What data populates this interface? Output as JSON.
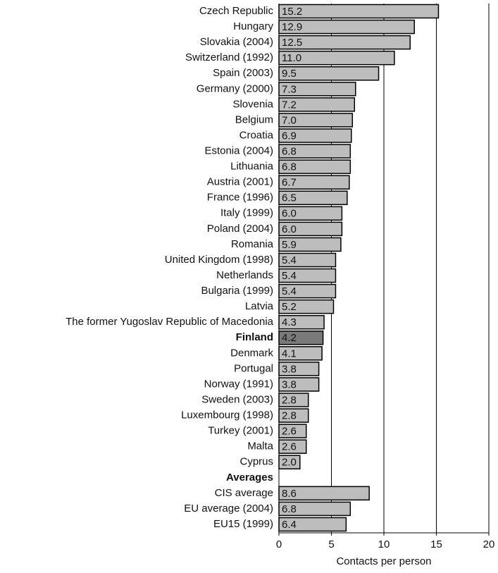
{
  "chart_data": {
    "type": "barh",
    "categories": [
      "Czech Republic",
      "Hungary",
      "Slovakia (2004)",
      "Switzerland (1992)",
      "Spain (2003)",
      "Germany (2000)",
      "Slovenia",
      "Belgium",
      "Croatia",
      "Estonia (2004)",
      "Lithuania",
      "Austria (2001)",
      "France (1996)",
      "Italy (1999)",
      "Poland (2004)",
      "Romania",
      "United Kingdom (1998)",
      "Netherlands",
      "Bulgaria (1999)",
      "Latvia",
      "The former Yugoslav Republic of Macedonia",
      "Finland",
      "Denmark",
      "Portugal",
      "Norway (1991)",
      "Sweden (2003)",
      "Luxembourg (1998)",
      "Turkey (2001)",
      "Malta",
      "Cyprus",
      "Averages",
      "CIS average",
      "EU average (2004)",
      "EU15 (1999)"
    ],
    "values": [
      15.2,
      12.9,
      12.5,
      11,
      9.5,
      7.3,
      7.2,
      7,
      6.9,
      6.8,
      6.8,
      6.7,
      6.5,
      6,
      6,
      5.9,
      5.4,
      5.4,
      5.4,
      5.2,
      4.3,
      4.2,
      4.1,
      3.8,
      3.8,
      2.8,
      2.8,
      2.6,
      2.6,
      2,
      null,
      8.6,
      6.8,
      6.4
    ],
    "value_labels": [
      "15.2",
      "12.9",
      "12.5",
      "11.0",
      "9.5",
      "7.3",
      "7.2",
      "7.0",
      "6.9",
      "6.8",
      "6.8",
      "6.7",
      "6.5",
      "6.0",
      "6.0",
      "5.9",
      "5.4",
      "5.4",
      "5.4",
      "5.2",
      "4.3",
      "4.2",
      "4.1",
      "3.8",
      "3.8",
      "2.8",
      "2.8",
      "2.6",
      "2.6",
      "2.0",
      null,
      "8.6",
      "6.8",
      "6.4"
    ],
    "color": "#bdbdbd",
    "highlight_color": "#7a7a7a",
    "highlight": [
      false,
      false,
      false,
      false,
      false,
      false,
      false,
      false,
      false,
      false,
      false,
      false,
      false,
      false,
      false,
      false,
      false,
      false,
      false,
      false,
      false,
      true,
      false,
      false,
      false,
      false,
      false,
      false,
      false,
      false,
      false,
      false,
      false,
      false
    ],
    "bold": [
      false,
      false,
      false,
      false,
      false,
      false,
      false,
      false,
      false,
      false,
      false,
      false,
      false,
      false,
      false,
      false,
      false,
      false,
      false,
      false,
      false,
      true,
      false,
      false,
      false,
      false,
      false,
      false,
      false,
      false,
      true,
      false,
      false,
      false
    ],
    "xlabel": "Contacts per person",
    "xlim": [
      0,
      20
    ],
    "xticks": [
      0,
      5,
      10,
      15,
      20
    ],
    "grid": true
  }
}
